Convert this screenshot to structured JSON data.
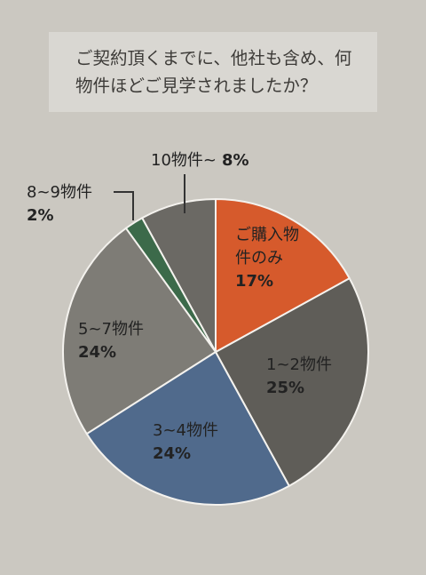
{
  "chart_data": {
    "type": "pie",
    "title": "ご契約頂くまでに、他社も含め、何物件ほどご見学されましたか？",
    "categories": [
      "ご購入物件のみ",
      "1~2物件",
      "3~4物件",
      "5~7物件",
      "8~9物件",
      "10物件~"
    ],
    "values": [
      17,
      25,
      24,
      24,
      2,
      8
    ],
    "value_labels": [
      "17%",
      "25%",
      "24%",
      "24%",
      "2%",
      "8%"
    ],
    "colors": [
      "#d65a2c",
      "#5f5d58",
      "#506a8c",
      "#7e7c76",
      "#3c6a4a",
      "#6b6964"
    ]
  }
}
